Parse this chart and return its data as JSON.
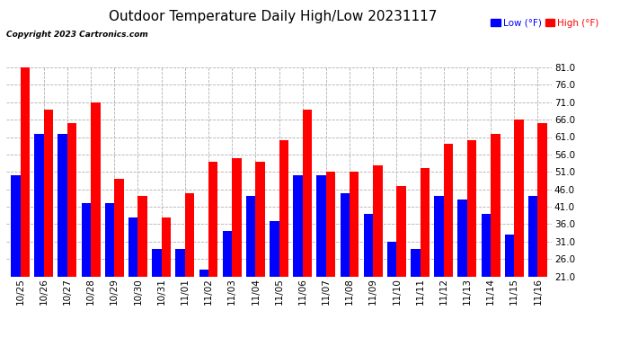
{
  "title": "Outdoor Temperature Daily High/Low 20231117",
  "copyright": "Copyright 2023 Cartronics.com",
  "dates": [
    "10/25",
    "10/26",
    "10/27",
    "10/28",
    "10/29",
    "10/30",
    "10/31",
    "11/01",
    "11/02",
    "11/03",
    "11/04",
    "11/05",
    "11/06",
    "11/07",
    "11/08",
    "11/09",
    "11/10",
    "11/11",
    "11/12",
    "11/13",
    "11/14",
    "11/15",
    "11/16"
  ],
  "highs": [
    82,
    69,
    65,
    71,
    49,
    44,
    38,
    45,
    54,
    55,
    54,
    60,
    69,
    51,
    51,
    53,
    47,
    52,
    59,
    60,
    62,
    66,
    65
  ],
  "lows": [
    50,
    62,
    62,
    42,
    42,
    38,
    29,
    29,
    23,
    34,
    44,
    37,
    50,
    50,
    45,
    39,
    31,
    29,
    44,
    43,
    39,
    33,
    44
  ],
  "ylim": [
    21.0,
    81.0
  ],
  "yticks": [
    21.0,
    26.0,
    31.0,
    36.0,
    41.0,
    46.0,
    51.0,
    56.0,
    61.0,
    66.0,
    71.0,
    76.0,
    81.0
  ],
  "high_color": "#ff0000",
  "low_color": "#0000ff",
  "bg_color": "#ffffff",
  "grid_color": "#b0b0b0",
  "title_fontsize": 11,
  "tick_fontsize": 7.5,
  "bar_width": 0.4
}
